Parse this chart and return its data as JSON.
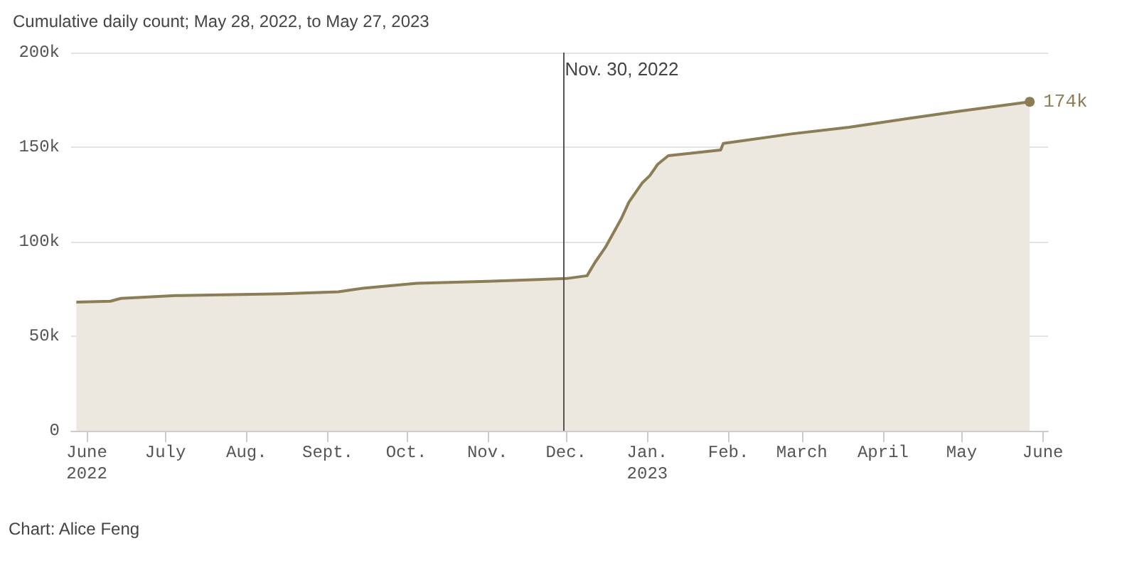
{
  "chart_data": {
    "type": "area",
    "title": "Cumulative daily count; May 28, 2022, to May 27, 2023",
    "x": [
      "2022-05-28",
      "2022-06-10",
      "2022-06-14",
      "2022-07-05",
      "2022-08-15",
      "2022-09-05",
      "2022-09-15",
      "2022-10-05",
      "2022-11-01",
      "2022-12-01",
      "2022-12-09",
      "2022-12-12",
      "2022-12-16",
      "2022-12-22",
      "2022-12-25",
      "2022-12-30",
      "2023-01-02",
      "2023-01-05",
      "2023-01-09",
      "2023-01-29",
      "2023-01-30",
      "2023-02-25",
      "2023-03-19",
      "2023-04-10",
      "2023-04-30",
      "2023-05-27"
    ],
    "series": [
      {
        "color": "#8b7d55",
        "values": [
          68000,
          68500,
          70000,
          71500,
          72500,
          73500,
          75500,
          78000,
          79000,
          80500,
          82000,
          89000,
          97000,
          112000,
          121000,
          131000,
          135000,
          141000,
          145500,
          148500,
          152000,
          157000,
          160500,
          165000,
          169000,
          174000
        ],
        "value_labels": [
          null,
          null,
          null,
          null,
          null,
          null,
          null,
          null,
          null,
          null,
          null,
          null,
          null,
          null,
          null,
          null,
          null,
          null,
          null,
          null,
          null,
          null,
          null,
          null,
          null,
          "174k"
        ]
      }
    ],
    "xlim": [
      "2022-05-26",
      "2023-06-03"
    ],
    "xticks": [
      {
        "value": "2022-06-01",
        "label": "June\n2022"
      },
      {
        "value": "2022-07-01",
        "label": "July"
      },
      {
        "value": "2022-08-01",
        "label": "Aug."
      },
      {
        "value": "2022-09-01",
        "label": "Sept."
      },
      {
        "value": "2022-10-01",
        "label": "Oct."
      },
      {
        "value": "2022-11-01",
        "label": "Nov."
      },
      {
        "value": "2022-12-01",
        "label": "Dec."
      },
      {
        "value": "2023-01-01",
        "label": "Jan.\n2023"
      },
      {
        "value": "2023-02-01",
        "label": "Feb."
      },
      {
        "value": "2023-03-01",
        "label": "March"
      },
      {
        "value": "2023-04-01",
        "label": "April"
      },
      {
        "value": "2023-05-01",
        "label": "May"
      },
      {
        "value": "2023-06-01",
        "label": "June"
      }
    ],
    "ylim": [
      0,
      200000
    ],
    "yticks": [
      0,
      {
        "value": 50000,
        "label": "50k"
      },
      {
        "value": 100000,
        "label": "100k"
      },
      {
        "value": 150000,
        "label": "150k"
      },
      {
        "value": 200000,
        "label": "200k"
      }
    ],
    "grid": "y",
    "ref_lines": [
      {
        "axis": "x",
        "value": "2022-11-30",
        "label": "Nov. 30, 2022",
        "color": "#555555"
      }
    ],
    "annotations": [
      "Chart: Alice Feng"
    ]
  }
}
